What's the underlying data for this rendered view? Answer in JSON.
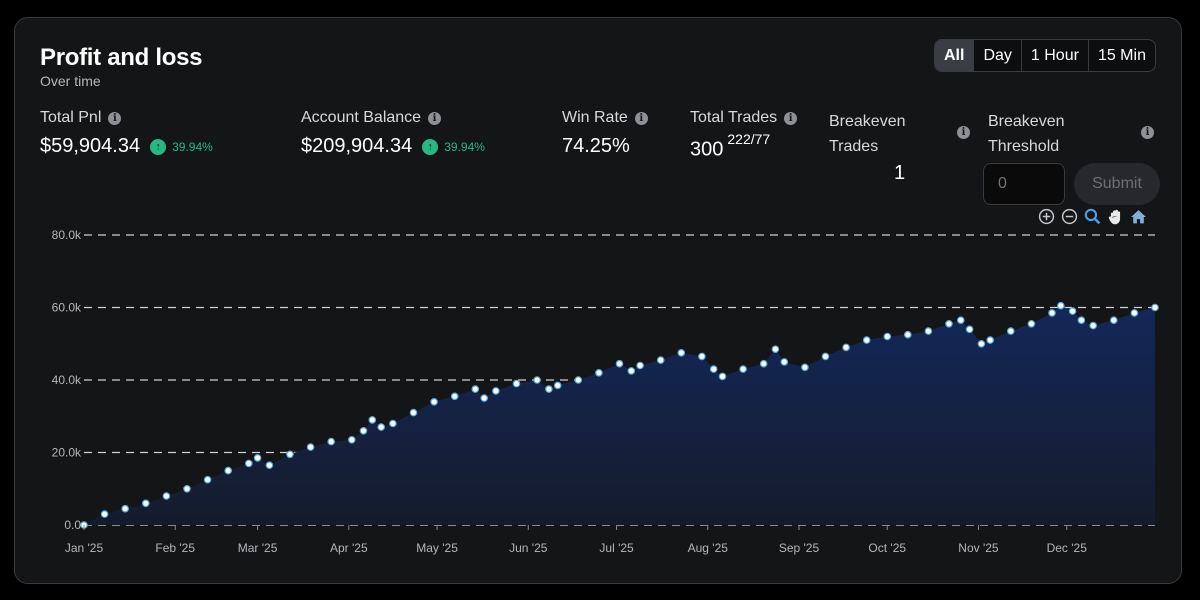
{
  "header": {
    "title": "Profit and loss",
    "subtitle": "Over time"
  },
  "timeframes": [
    {
      "label": "All",
      "active": true
    },
    {
      "label": "Day",
      "active": false
    },
    {
      "label": "1 Hour",
      "active": false
    },
    {
      "label": "15 Min",
      "active": false
    }
  ],
  "stats": {
    "total_pnl": {
      "label": "Total Pnl",
      "value": "$59,904.34",
      "change": "39.94%"
    },
    "account_balance": {
      "label": "Account Balance",
      "value": "$209,904.34",
      "change": "39.94%"
    },
    "win_rate": {
      "label": "Win Rate",
      "value": "74.25%"
    },
    "total_trades": {
      "label": "Total Trades",
      "value": "300",
      "breakdown": "222/77"
    },
    "breakeven_trades": {
      "label_line1": "Breakeven",
      "label_line2": "Trades",
      "value": "1"
    },
    "breakeven_threshold": {
      "label_line1": "Breakeven",
      "label_line2": "Threshold",
      "placeholder": "0",
      "submit_label": "Submit"
    }
  },
  "colors": {
    "positive": "#27b883",
    "area_top": "#13285a",
    "area_bottom": "#141b2b",
    "point_fill": "#ffffff",
    "point_stroke": "#5aa9e6",
    "grid": "#cfd1d4"
  },
  "icons": [
    "info-icon",
    "arrow-up-icon",
    "zoom-in-icon",
    "zoom-out-icon",
    "magnify-icon",
    "pan-hand-icon",
    "home-icon"
  ],
  "chart_data": {
    "type": "area",
    "x_tick_labels": [
      "Jan '25",
      "Feb '25",
      "Mar '25",
      "Apr '25",
      "May '25",
      "Jun '25",
      "Jul '25",
      "Aug '25",
      "Sep '25",
      "Oct '25",
      "Nov '25",
      "Dec '25"
    ],
    "y_tick_labels": [
      "0.0",
      "20.0k",
      "40.0k",
      "60.0k",
      "80.0k"
    ],
    "ylim": [
      0,
      80000
    ],
    "xlim": [
      "2025-01-01",
      "2025-12-31"
    ],
    "grid": "horizontal dashed",
    "markers": true,
    "series": [
      {
        "x": [
          "2025-01-01",
          "2025-01-08",
          "2025-01-15",
          "2025-01-22",
          "2025-01-29",
          "2025-02-05",
          "2025-02-12",
          "2025-02-19",
          "2025-02-26",
          "2025-03-01",
          "2025-03-05",
          "2025-03-12",
          "2025-03-19",
          "2025-03-26",
          "2025-04-02",
          "2025-04-06",
          "2025-04-09",
          "2025-04-12",
          "2025-04-16",
          "2025-04-23",
          "2025-04-30",
          "2025-05-07",
          "2025-05-14",
          "2025-05-17",
          "2025-05-21",
          "2025-05-28",
          "2025-06-04",
          "2025-06-08",
          "2025-06-11",
          "2025-06-18",
          "2025-06-25",
          "2025-07-02",
          "2025-07-06",
          "2025-07-09",
          "2025-07-16",
          "2025-07-23",
          "2025-07-30",
          "2025-08-03",
          "2025-08-06",
          "2025-08-13",
          "2025-08-20",
          "2025-08-24",
          "2025-08-27",
          "2025-09-03",
          "2025-09-10",
          "2025-09-17",
          "2025-09-24",
          "2025-10-01",
          "2025-10-08",
          "2025-10-15",
          "2025-10-22",
          "2025-10-26",
          "2025-10-29",
          "2025-11-02",
          "2025-11-05",
          "2025-11-12",
          "2025-11-19",
          "2025-11-26",
          "2025-11-29",
          "2025-12-03",
          "2025-12-06",
          "2025-12-10",
          "2025-12-17",
          "2025-12-24",
          "2025-12-31"
        ],
        "y": [
          0,
          3000,
          4500,
          6000,
          8000,
          10000,
          12500,
          15000,
          17000,
          18500,
          16500,
          19500,
          21500,
          23000,
          23500,
          26000,
          29000,
          27000,
          28000,
          31000,
          34000,
          35500,
          37500,
          35000,
          37000,
          39000,
          40000,
          37500,
          38500,
          40000,
          42000,
          44500,
          42500,
          44000,
          45500,
          47500,
          46500,
          43000,
          41000,
          43000,
          44500,
          48500,
          45000,
          43500,
          46500,
          49000,
          51000,
          52000,
          52500,
          53500,
          55500,
          56500,
          54000,
          50000,
          51000,
          53500,
          55500,
          58500,
          60500,
          59000,
          56500,
          55000,
          56500,
          58500,
          60000
        ]
      }
    ]
  }
}
